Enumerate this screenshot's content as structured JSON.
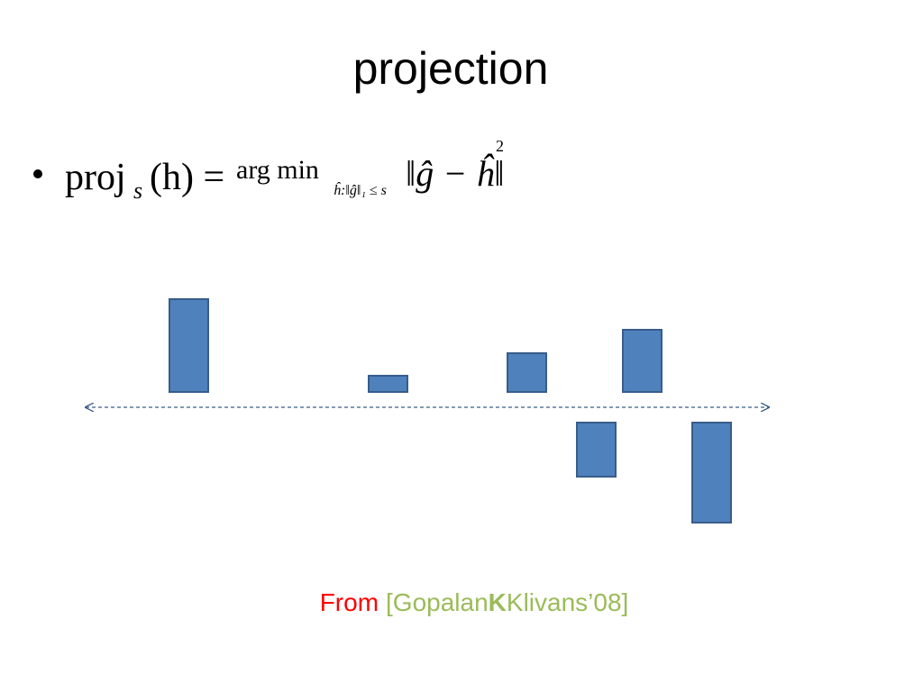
{
  "title": "projection",
  "bullet": {
    "lhs": "proj",
    "lhs_sub": "s",
    "lhs_arg": "(h) =",
    "op": "arg min",
    "op_sub": "ĥ:‖ĝ‖₁ ≤ s",
    "norm": "‖ĝ − ĥ‖",
    "norm_power": "2"
  },
  "citation": {
    "prefix": "From",
    "open": "[Gopalan",
    "bold": "K",
    "rest": "Klivans’08]"
  }
}
